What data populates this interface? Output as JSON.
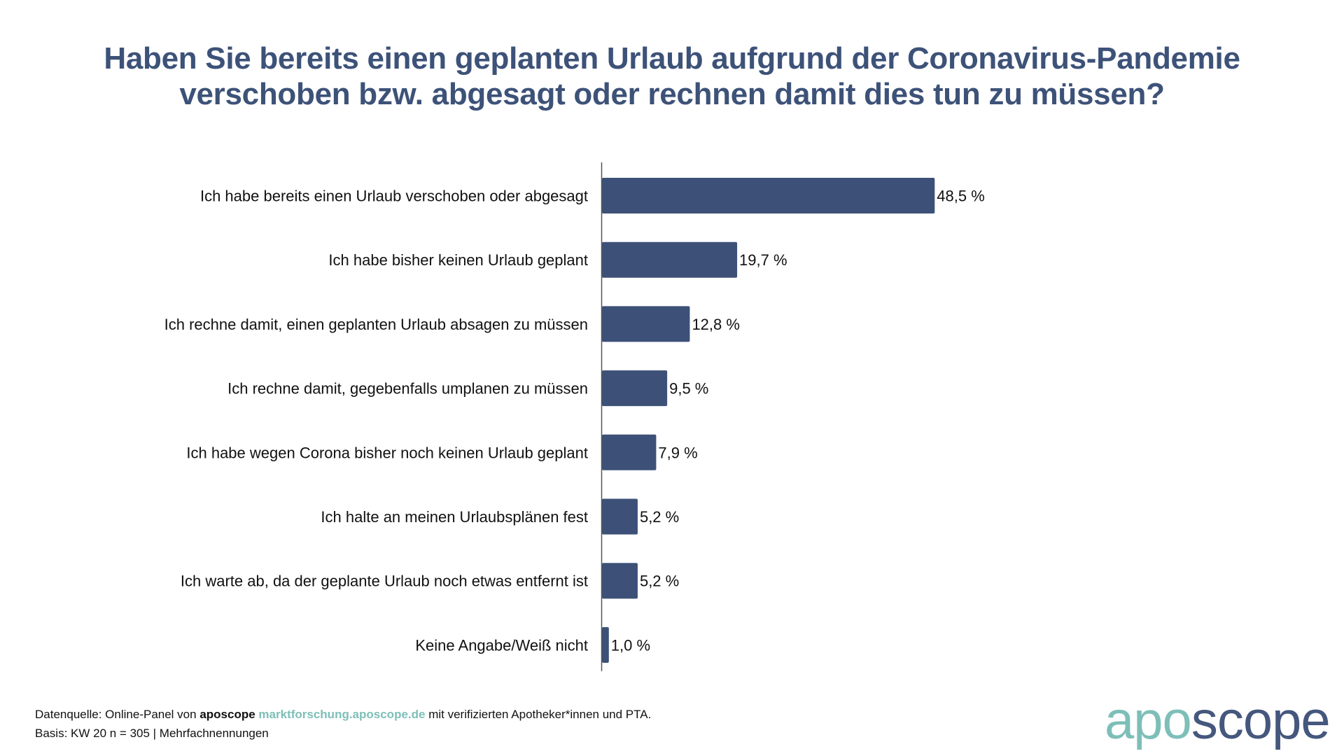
{
  "title": {
    "line1": "Haben Sie bereits einen geplanten Urlaub aufgrund der Coronavirus-Pandemie",
    "line2": "verschoben bzw. abgesagt oder rechnen damit dies tun zu müssen?"
  },
  "colors": {
    "title": "#3d5278",
    "bar": "#3d5178",
    "axis": "#555555",
    "brand_teal": "#7dbfb8",
    "brand_navy": "#45577d"
  },
  "chart_data": {
    "type": "bar",
    "orientation": "horizontal",
    "title": "Haben Sie bereits einen geplanten Urlaub aufgrund der Coronavirus-Pandemie verschoben bzw. abgesagt oder rechnen damit dies tun zu müssen?",
    "xlabel": "",
    "ylabel": "",
    "unit": "%",
    "xlim": [
      0,
      50
    ],
    "grid": false,
    "legend": "none",
    "categories": [
      "Ich habe bereits einen Urlaub verschoben oder abgesagt",
      "Ich habe bisher keinen Urlaub geplant",
      "Ich rechne damit, einen geplanten Urlaub absagen zu müssen",
      "Ich rechne damit, gegebenfalls umplanen zu müssen",
      "Ich habe wegen Corona bisher noch keinen Urlaub geplant",
      "Ich halte an meinen Urlaubsplänen fest",
      "Ich warte ab, da der geplante Urlaub noch etwas entfernt ist",
      "Keine Angabe/Weiß nicht"
    ],
    "values": [
      48.5,
      19.7,
      12.8,
      9.5,
      7.9,
      5.2,
      5.2,
      1.0
    ],
    "data_labels": [
      "48,5 %",
      "19,7 %",
      "12,8 %",
      "9,5 %",
      "7,9 %",
      "5,2 %",
      "5,2 %",
      "1,0 %"
    ]
  },
  "footer": {
    "source_prefix": "Datenquelle: Online-Panel von ",
    "source_brand": "aposcope",
    "source_link": "marktforschung.aposcope.de",
    "source_suffix": " mit verifizierten Apotheker*innen und PTA.",
    "basis": "Basis: KW 20 n = 305 | Mehrfachnennungen"
  },
  "logo": {
    "part1": "apo",
    "part2": "scope"
  }
}
